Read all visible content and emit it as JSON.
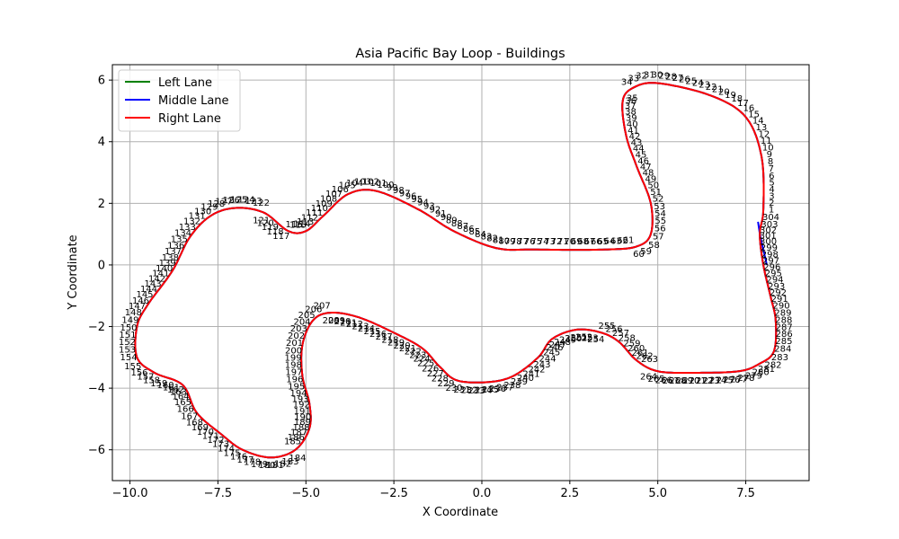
{
  "chart_data": {
    "type": "line",
    "title": "Asia Pacific Bay Loop - Buildings",
    "xlabel": "X Coordinate",
    "ylabel": "Y Coordinate",
    "xlim": [
      -10.5,
      9.3
    ],
    "ylim": [
      -7.0,
      6.5
    ],
    "xticks": [
      -10.0,
      -7.5,
      -5.0,
      -2.5,
      0.0,
      2.5,
      5.0,
      7.5
    ],
    "xtick_labels": [
      "−10.0",
      "−7.5",
      "−5.0",
      "−2.5",
      "0.0",
      "2.5",
      "5.0",
      "7.5"
    ],
    "yticks": [
      -6,
      -4,
      -2,
      0,
      2,
      4,
      6
    ],
    "ytick_labels": [
      "−6",
      "−4",
      "−2",
      "0",
      "2",
      "4",
      "6"
    ],
    "grid": true,
    "legend_position": "upper-left",
    "series": [
      {
        "name": "Left Lane",
        "color": "#008000"
      },
      {
        "name": "Middle Lane",
        "color": "#0000ff"
      },
      {
        "name": "Right Lane",
        "color": "#ff0000"
      }
    ],
    "track_waypoints": [
      [
        8.0,
        1.8
      ],
      [
        7.95,
        3.5
      ],
      [
        7.5,
        4.8
      ],
      [
        6.5,
        5.5
      ],
      [
        5.0,
        5.9
      ],
      [
        4.3,
        5.75
      ],
      [
        4.0,
        5.3
      ],
      [
        4.1,
        4.2
      ],
      [
        4.4,
        3.2
      ],
      [
        4.8,
        2.0
      ],
      [
        4.8,
        1.0
      ],
      [
        4.4,
        0.6
      ],
      [
        3.5,
        0.5
      ],
      [
        1.5,
        0.5
      ],
      [
        0.4,
        0.55
      ],
      [
        -0.8,
        1.1
      ],
      [
        -1.8,
        1.8
      ],
      [
        -3.0,
        2.4
      ],
      [
        -3.8,
        2.3
      ],
      [
        -4.5,
        1.6
      ],
      [
        -5.0,
        1.1
      ],
      [
        -5.5,
        1.1
      ],
      [
        -6.2,
        1.7
      ],
      [
        -7.0,
        1.85
      ],
      [
        -7.7,
        1.6
      ],
      [
        -8.3,
        0.9
      ],
      [
        -8.8,
        -0.2
      ],
      [
        -9.5,
        -1.3
      ],
      [
        -9.8,
        -2.0
      ],
      [
        -9.8,
        -3.0
      ],
      [
        -9.3,
        -3.5
      ],
      [
        -8.5,
        -3.9
      ],
      [
        -8.1,
        -4.8
      ],
      [
        -7.4,
        -5.5
      ],
      [
        -6.8,
        -6.0
      ],
      [
        -6.0,
        -6.25
      ],
      [
        -5.3,
        -6.0
      ],
      [
        -4.9,
        -5.3
      ],
      [
        -4.9,
        -4.5
      ],
      [
        -5.1,
        -3.6
      ],
      [
        -5.1,
        -2.6
      ],
      [
        -4.8,
        -1.8
      ],
      [
        -4.3,
        -1.55
      ],
      [
        -3.5,
        -1.7
      ],
      [
        -2.5,
        -2.2
      ],
      [
        -1.7,
        -2.7
      ],
      [
        -1.2,
        -3.3
      ],
      [
        -0.7,
        -3.75
      ],
      [
        0.2,
        -3.8
      ],
      [
        0.9,
        -3.6
      ],
      [
        1.6,
        -3.0
      ],
      [
        2.0,
        -2.4
      ],
      [
        2.7,
        -2.1
      ],
      [
        3.4,
        -2.2
      ],
      [
        3.9,
        -2.5
      ],
      [
        4.4,
        -3.1
      ],
      [
        5.0,
        -3.45
      ],
      [
        6.0,
        -3.5
      ],
      [
        7.3,
        -3.45
      ],
      [
        7.9,
        -3.2
      ],
      [
        8.3,
        -2.8
      ],
      [
        8.35,
        -1.8
      ],
      [
        8.2,
        -1.0
      ],
      [
        8.0,
        0.0
      ],
      [
        7.9,
        1.0
      ]
    ],
    "middle_lane_offset": [
      [
        7.85,
        1.4
      ],
      [
        7.9,
        1.0
      ],
      [
        8.0,
        0.5
      ],
      [
        8.1,
        0.0
      ]
    ],
    "point_label_count": 304
  }
}
